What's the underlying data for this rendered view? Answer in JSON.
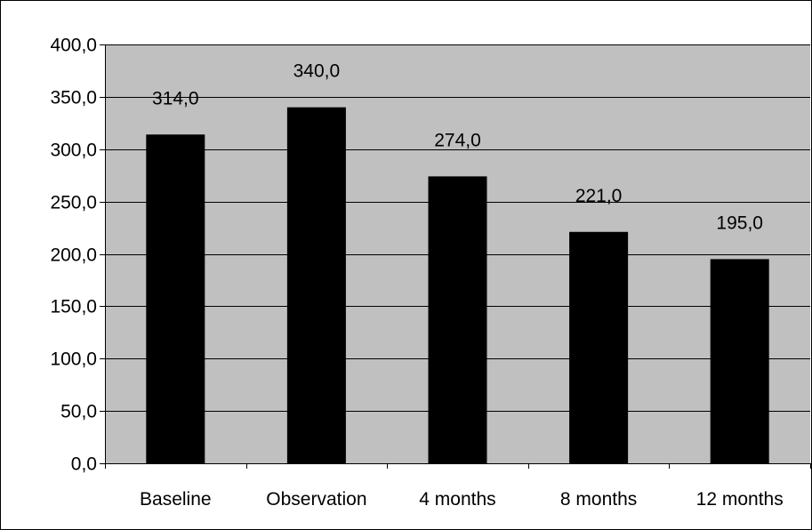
{
  "chart_data": {
    "type": "bar",
    "categories": [
      "Baseline",
      "Observation",
      "4 months",
      "8 months",
      "12 months"
    ],
    "values": [
      314.0,
      340.0,
      274.0,
      221.0,
      195.0
    ],
    "value_labels": [
      "314,0",
      "340,0",
      "274,0",
      "221,0",
      "195,0"
    ],
    "yticks": [
      0,
      50,
      100,
      150,
      200,
      250,
      300,
      350,
      400
    ],
    "ytick_labels": [
      "0,0",
      "50,0",
      "100,0",
      "150,0",
      "200,0",
      "250,0",
      "300,0",
      "350,0",
      "400,0"
    ],
    "ylim": [
      0,
      400
    ],
    "title": "",
    "xlabel": "",
    "ylabel": "",
    "grid": true,
    "legend": "none",
    "colors": {
      "plot_background": "#c0c0c0",
      "bar_fill": "#000000",
      "gridline": "#000000",
      "text": "#000000"
    }
  }
}
